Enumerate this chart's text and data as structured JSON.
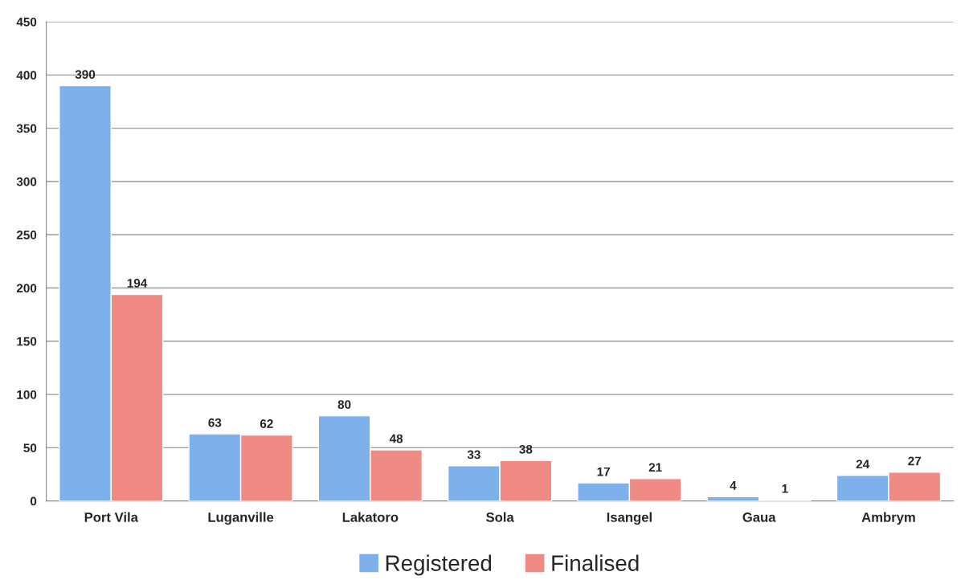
{
  "chart_data": {
    "type": "bar",
    "categories": [
      "Port Vila",
      "Luganville",
      "Lakatoro",
      "Sola",
      "Isangel",
      "Gaua",
      "Ambrym"
    ],
    "series": [
      {
        "name": "Registered",
        "color": "#7eb1ec",
        "values": [
          390,
          63,
          80,
          33,
          17,
          4,
          24
        ]
      },
      {
        "name": "Finalised",
        "color": "#ef8a85",
        "values": [
          194,
          62,
          48,
          38,
          21,
          1,
          27
        ]
      }
    ],
    "ylim": [
      0,
      450
    ],
    "yticks": [
      0,
      50,
      100,
      150,
      200,
      250,
      300,
      350,
      400,
      450
    ],
    "grid": "y",
    "legend": "bottom",
    "data_labels": true
  }
}
